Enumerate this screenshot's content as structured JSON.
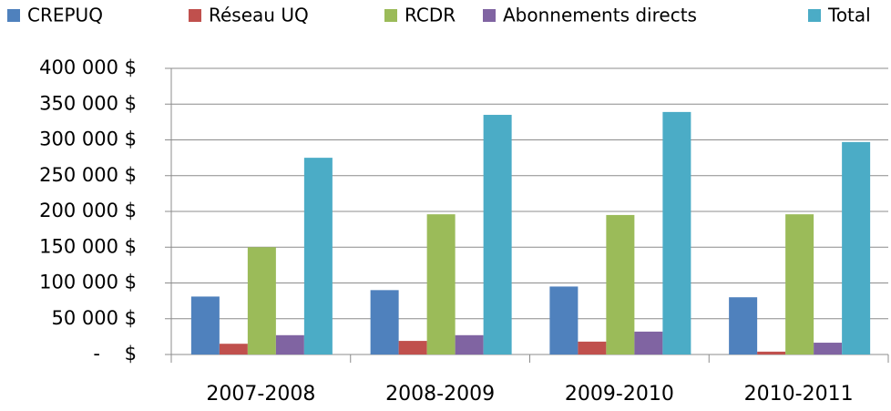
{
  "chart_data": {
    "type": "bar",
    "categories": [
      "2007-2008",
      "2008-2009",
      "2009-2010",
      "2010-2011"
    ],
    "series": [
      {
        "name": "CREPUQ",
        "color": "#4f81bd",
        "values": [
          81000,
          90000,
          95000,
          80000
        ]
      },
      {
        "name": "Réseau UQ",
        "color": "#c0504d",
        "values": [
          15000,
          19000,
          18000,
          4000
        ]
      },
      {
        "name": "RCDR",
        "color": "#9bbb59",
        "values": [
          150000,
          196000,
          195000,
          196000
        ]
      },
      {
        "name": "Abonnements directs",
        "color": "#8064a2",
        "values": [
          27000,
          27000,
          32000,
          16500
        ]
      },
      {
        "name": "Total",
        "color": "#4bacc6",
        "values": [
          275000,
          335000,
          339000,
          297000
        ]
      }
    ],
    "ylim": [
      0,
      400000
    ],
    "yticks": [
      {
        "value": 0,
        "label": "-    $"
      },
      {
        "value": 50000,
        "label": "50 000 $"
      },
      {
        "value": 100000,
        "label": "100 000 $"
      },
      {
        "value": 150000,
        "label": "150 000 $"
      },
      {
        "value": 200000,
        "label": "200 000 $"
      },
      {
        "value": 250000,
        "label": "250 000 $"
      },
      {
        "value": 300000,
        "label": "300 000 $"
      },
      {
        "value": 350000,
        "label": "350 000 $"
      },
      {
        "value": 400000,
        "label": "400 000 $"
      }
    ],
    "grid": true,
    "legend": "top"
  }
}
